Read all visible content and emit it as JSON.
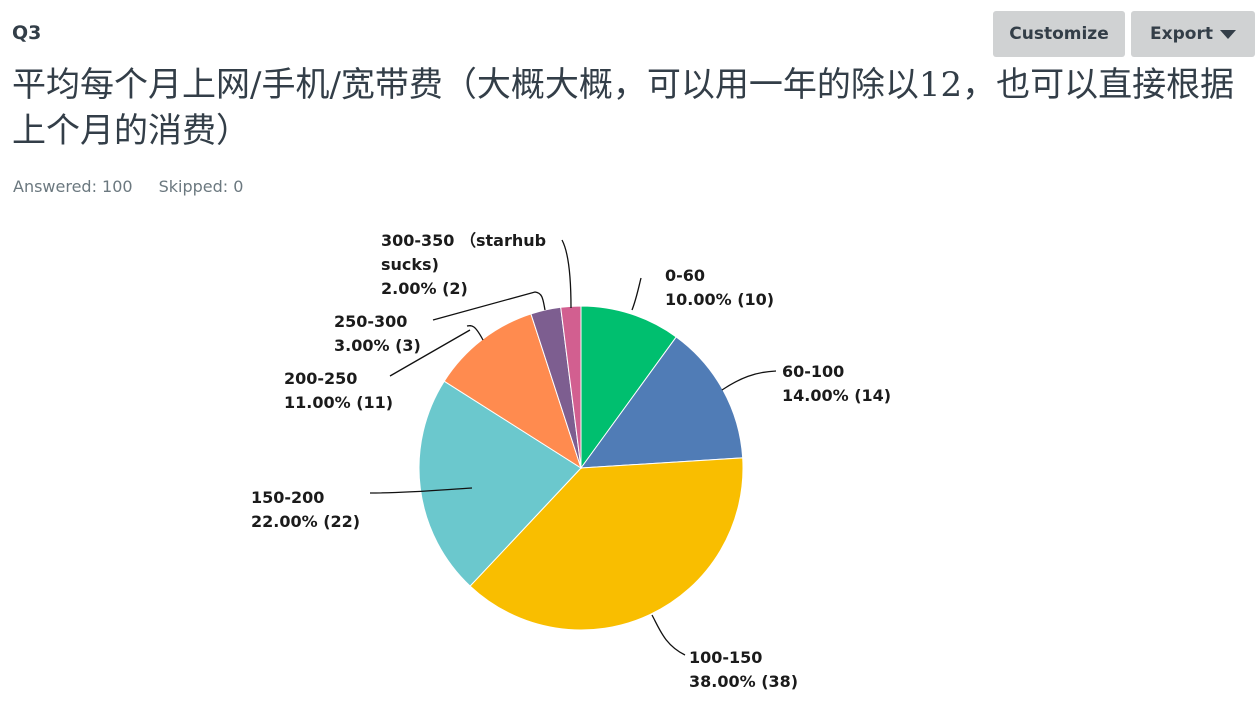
{
  "question_id": "Q3",
  "buttons": {
    "customize": "Customize",
    "export": "Export"
  },
  "title": "平均每个月上网/手机/宽带费（大概大概，可以用一年的除以12，也可以直接根据上个月的消费）",
  "stats": {
    "answered": "Answered: 100",
    "skipped": "Skipped: 0"
  },
  "chart_data": {
    "type": "pie",
    "title": "平均每个月上网/手机/宽带费（大概大概，可以用一年的除以12，也可以直接根据上个月的消费）",
    "slices": [
      {
        "label": "0-60",
        "percent_text": "10.00% (10)",
        "value": 10,
        "color": "#00bf6f"
      },
      {
        "label": "60-100",
        "percent_text": "14.00% (14)",
        "value": 14,
        "color": "#507cb6"
      },
      {
        "label": "100-150",
        "percent_text": "38.00% (38)",
        "value": 38,
        "color": "#f9be00"
      },
      {
        "label": "150-200",
        "percent_text": "22.00% (22)",
        "value": 22,
        "color": "#6bc8cd"
      },
      {
        "label": "200-250",
        "percent_text": "11.00% (11)",
        "value": 11,
        "color": "#ff8b4f"
      },
      {
        "label": "250-300",
        "percent_text": "3.00% (3)",
        "value": 3,
        "color": "#7d5e90"
      },
      {
        "label": "300-350 （starhub sucks)",
        "percent_text": "2.00% (2)",
        "value": 2,
        "color": "#d25f90"
      }
    ]
  }
}
